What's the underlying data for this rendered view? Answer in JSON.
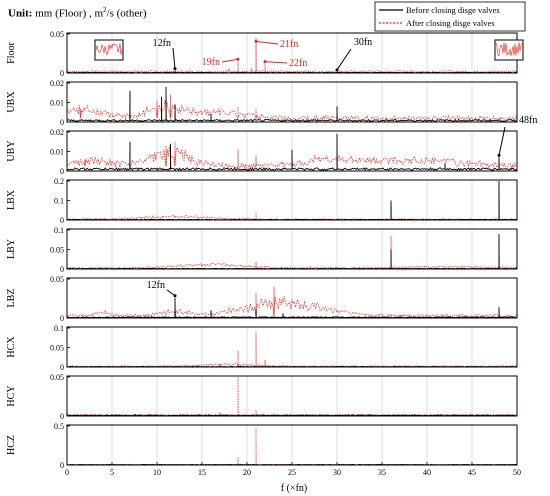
{
  "figure": {
    "unit_prefix": "Unit:",
    "unit_text": "mm (Floor) , m",
    "unit_sup": "2",
    "unit_suffix": "/s (other)",
    "xlabel": "f (×fn)"
  },
  "colors": {
    "before": "#000000",
    "after": "#e8251f",
    "grid": "#c8c8c8",
    "annotation_black": "#000000",
    "annotation_red": "#e8251f"
  },
  "chart_data": {
    "type": "line",
    "title": "",
    "xlabel": "f (×fn)",
    "xlim": [
      0,
      50
    ],
    "xticks": [
      0,
      5,
      10,
      15,
      20,
      25,
      30,
      35,
      40,
      45,
      50
    ],
    "grid": "vertical",
    "legend": {
      "position": "top-right",
      "entries": [
        "Before closing disge valves",
        "After closing disge valves"
      ]
    },
    "series_styles": [
      {
        "name": "Before closing disge valves",
        "style": "solid",
        "color": "#000000"
      },
      {
        "name": "After closing disge valves",
        "style": "dotted",
        "color": "#e8251f"
      }
    ],
    "panels": [
      {
        "ylabel": "Floor",
        "ylim": [
          0,
          0.05
        ],
        "yticks": [
          "0",
          "0.05"
        ],
        "before_base": 0.0006,
        "after_base": 0.002,
        "after_bumps": [],
        "before_peaks": [
          [
            12,
            0.003
          ],
          [
            30,
            0.0015
          ]
        ],
        "after_peaks": [
          [
            18,
            0.006
          ],
          [
            19,
            0.015
          ],
          [
            21,
            0.045
          ],
          [
            22,
            0.012
          ],
          [
            20.5,
            0.006
          ]
        ],
        "annotations": [
          {
            "text": "12fn",
            "x": 12,
            "y": 0.003,
            "color": "black"
          },
          {
            "text": "19fn",
            "x": 19,
            "y": 0.015,
            "color": "red"
          },
          {
            "text": "21fn",
            "x": 21,
            "y": 0.038,
            "color": "red"
          },
          {
            "text": "22fn",
            "x": 22,
            "y": 0.012,
            "color": "red"
          },
          {
            "text": "30fn",
            "x": 30,
            "y": 0.0015,
            "color": "black"
          }
        ]
      },
      {
        "ylabel": "UBX",
        "ylim": [
          0,
          0.02
        ],
        "yticks": [
          "0",
          "0.01",
          "0.02"
        ],
        "before_base": 0.0008,
        "after_base": 0.002,
        "after_bumps": [
          [
            2,
            0.005,
            3
          ],
          [
            11,
            0.006,
            3
          ],
          [
            17,
            0.003,
            4
          ]
        ],
        "before_peaks": [
          [
            7,
            0.016
          ],
          [
            10.5,
            0.013
          ],
          [
            11,
            0.018
          ],
          [
            12,
            0.009
          ],
          [
            16,
            0.004
          ],
          [
            30,
            0.008
          ]
        ],
        "after_peaks": [
          [
            1.5,
            0.007
          ],
          [
            7,
            0.015
          ],
          [
            10,
            0.011
          ],
          [
            11.5,
            0.014
          ],
          [
            19,
            0.008
          ],
          [
            21,
            0.007
          ]
        ],
        "annotations": []
      },
      {
        "ylabel": "UBY",
        "ylim": [
          0,
          0.02
        ],
        "yticks": [
          "0",
          "0.01",
          "0.02"
        ],
        "before_base": 0.001,
        "after_base": 0.0025,
        "after_bumps": [
          [
            11.5,
            0.008,
            3
          ],
          [
            3,
            0.003,
            3
          ],
          [
            40,
            0.003,
            6
          ],
          [
            30,
            0.004,
            5
          ]
        ],
        "before_peaks": [
          [
            7,
            0.015
          ],
          [
            11.5,
            0.014
          ],
          [
            25,
            0.011
          ],
          [
            30,
            0.019
          ],
          [
            42,
            0.004
          ],
          [
            48,
            0.007
          ]
        ],
        "after_peaks": [
          [
            2,
            0.006
          ],
          [
            7,
            0.011
          ],
          [
            11,
            0.013
          ],
          [
            12,
            0.015
          ],
          [
            19,
            0.011
          ],
          [
            21,
            0.008
          ]
        ],
        "annotations": [
          {
            "text": "48fn",
            "x": 48,
            "y": 0.007,
            "color": "black"
          }
        ]
      },
      {
        "ylabel": "LBX",
        "ylim": [
          0,
          0.2
        ],
        "yticks": [
          "0",
          "0.1",
          "0.2"
        ],
        "before_base": 0.002,
        "after_base": 0.004,
        "after_bumps": [
          [
            12,
            0.015,
            5
          ]
        ],
        "before_peaks": [
          [
            36,
            0.1
          ],
          [
            48,
            0.2
          ]
        ],
        "after_peaks": [
          [
            21,
            0.04
          ],
          [
            36,
            0.08
          ],
          [
            48,
            0.17
          ]
        ],
        "annotations": []
      },
      {
        "ylabel": "LBY",
        "ylim": [
          0,
          0.1
        ],
        "yticks": [
          "0",
          "0.05",
          "0.1"
        ],
        "before_base": 0.001,
        "after_base": 0.003,
        "after_bumps": [
          [
            16,
            0.009,
            5
          ],
          [
            42,
            0.003,
            6
          ]
        ],
        "before_peaks": [
          [
            36,
            0.05
          ],
          [
            48,
            0.09
          ]
        ],
        "after_peaks": [
          [
            21,
            0.018
          ],
          [
            36,
            0.085
          ],
          [
            48,
            0.08
          ],
          [
            27,
            0.008
          ]
        ],
        "annotations": []
      },
      {
        "ylabel": "LBZ",
        "ylim": [
          0,
          0.05
        ],
        "yticks": [
          "0",
          "0.05"
        ],
        "before_base": 0.001,
        "after_base": 0.003,
        "after_bumps": [
          [
            24,
            0.018,
            6
          ],
          [
            12,
            0.006,
            2
          ],
          [
            4,
            0.005,
            1
          ]
        ],
        "before_peaks": [
          [
            12,
            0.026
          ],
          [
            16,
            0.01
          ],
          [
            21,
            0.01
          ],
          [
            24,
            0.006
          ],
          [
            48,
            0.014
          ]
        ],
        "after_peaks": [
          [
            12,
            0.02
          ],
          [
            21,
            0.032
          ],
          [
            23,
            0.04
          ],
          [
            48,
            0.012
          ]
        ],
        "annotations": [
          {
            "text": "12fn",
            "x": 12,
            "y": 0.026,
            "color": "black"
          }
        ]
      },
      {
        "ylabel": "HCX",
        "ylim": [
          0,
          0.1
        ],
        "yticks": [
          "0",
          "0.05",
          "0.1"
        ],
        "before_base": 0.0008,
        "after_base": 0.002,
        "after_bumps": [
          [
            18,
            0.005,
            4
          ]
        ],
        "before_peaks": [],
        "after_peaks": [
          [
            19,
            0.042
          ],
          [
            21,
            0.09
          ],
          [
            22,
            0.018
          ],
          [
            17,
            0.01
          ]
        ],
        "annotations": []
      },
      {
        "ylabel": "HCY",
        "ylim": [
          0,
          0.05
        ],
        "yticks": [
          "0",
          "0.05"
        ],
        "before_base": 0.0008,
        "after_base": 0.0015,
        "after_bumps": [],
        "before_peaks": [],
        "after_peaks": [
          [
            19,
            0.05
          ],
          [
            21,
            0.008
          ],
          [
            17,
            0.005
          ],
          [
            23,
            0.004
          ]
        ],
        "annotations": []
      },
      {
        "ylabel": "HCZ",
        "ylim": [
          0,
          0.5
        ],
        "yticks": [
          "0",
          "0.5"
        ],
        "before_base": 0.004,
        "after_base": 0.006,
        "after_bumps": [],
        "before_peaks": [],
        "after_peaks": [
          [
            19,
            0.1
          ],
          [
            21,
            0.48
          ]
        ],
        "annotations": []
      }
    ]
  }
}
